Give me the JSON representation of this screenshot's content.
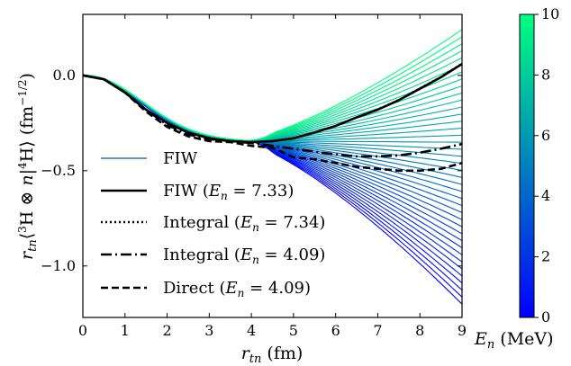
{
  "chart_data": {
    "type": "line",
    "xlabel": "r_tn (fm)",
    "ylabel": "r_tn ⟨³H ⊗ n|⁴H⟩ (fm^-1/2)",
    "xlim": [
      0,
      9
    ],
    "ylim": [
      -1.27,
      0.32
    ],
    "x_ticks": [
      0,
      1,
      2,
      3,
      4,
      5,
      6,
      7,
      8,
      9
    ],
    "y_ticks": [
      0.0,
      -0.5,
      -1.0
    ],
    "x_tick_labels": [
      "0",
      "1",
      "2",
      "3",
      "4",
      "5",
      "6",
      "7",
      "8",
      "9"
    ],
    "y_tick_labels": [
      "0.0",
      "−0.5",
      "−1.0"
    ],
    "grid": false,
    "legend_placement": "lower-left",
    "colorbar": {
      "label": "E_n (MeV)",
      "range": [
        0,
        10
      ],
      "ticks": [
        0,
        2,
        4,
        6,
        8,
        10
      ],
      "tick_labels": [
        "0",
        "2",
        "4",
        "6",
        "8",
        "10"
      ],
      "color_low": "#0000ff",
      "color_high": "#00ff80"
    },
    "fiw_family": {
      "legend": "FIW",
      "legend_color": "#1f77b4",
      "energy_range_MeV": [
        0,
        10
      ],
      "curve_count": 40,
      "x_range": [
        0,
        9
      ],
      "y_at_x9_min": -1.2,
      "y_at_x9_max": 0.24,
      "crossing_point": [
        3.75,
        -0.345
      ]
    },
    "series": [
      {
        "name": "FIW (E_n = 7.33)",
        "style": "solid",
        "x": [
          0,
          0.5,
          1,
          1.5,
          2,
          2.5,
          3,
          3.5,
          4,
          4.5,
          5,
          5.5,
          6,
          6.5,
          7,
          7.5,
          8,
          8.5,
          9
        ],
        "y": [
          0.0,
          -0.02,
          -0.09,
          -0.18,
          -0.25,
          -0.3,
          -0.33,
          -0.345,
          -0.35,
          -0.345,
          -0.33,
          -0.3,
          -0.265,
          -0.22,
          -0.18,
          -0.13,
          -0.07,
          -0.01,
          0.06
        ]
      },
      {
        "name": "Integral (E_n = 7.34)",
        "style": "dotted",
        "x": [
          0,
          0.5,
          1,
          1.5,
          2,
          2.5,
          3,
          3.5,
          4,
          4.5,
          5,
          5.5,
          6,
          6.5,
          7,
          7.5,
          8,
          8.5,
          9
        ],
        "y": [
          0.0,
          -0.02,
          -0.09,
          -0.18,
          -0.25,
          -0.3,
          -0.33,
          -0.345,
          -0.35,
          -0.345,
          -0.33,
          -0.3,
          -0.265,
          -0.22,
          -0.178,
          -0.128,
          -0.068,
          -0.008,
          0.062
        ]
      },
      {
        "name": "Integral (E_n = 4.09)",
        "style": "dashdot",
        "x": [
          0,
          0.5,
          1,
          1.5,
          2,
          2.5,
          3,
          3.5,
          4,
          4.5,
          5,
          5.5,
          6,
          6.5,
          7,
          7.5,
          8,
          8.5,
          9
        ],
        "y": [
          0.0,
          -0.02,
          -0.09,
          -0.18,
          -0.26,
          -0.31,
          -0.335,
          -0.345,
          -0.355,
          -0.37,
          -0.385,
          -0.4,
          -0.415,
          -0.425,
          -0.425,
          -0.42,
          -0.405,
          -0.385,
          -0.36
        ]
      },
      {
        "name": "Direct (E_n = 4.09)",
        "style": "dashed",
        "x": [
          0,
          0.5,
          1,
          1.5,
          2,
          2.5,
          3,
          3.5,
          4,
          4.5,
          5,
          5.5,
          6,
          6.5,
          7,
          7.5,
          8,
          8.5,
          9
        ],
        "y": [
          0.0,
          -0.02,
          -0.09,
          -0.19,
          -0.27,
          -0.32,
          -0.345,
          -0.35,
          -0.37,
          -0.38,
          -0.43,
          -0.44,
          -0.46,
          -0.48,
          -0.49,
          -0.5,
          -0.5,
          -0.49,
          -0.46
        ]
      }
    ]
  }
}
